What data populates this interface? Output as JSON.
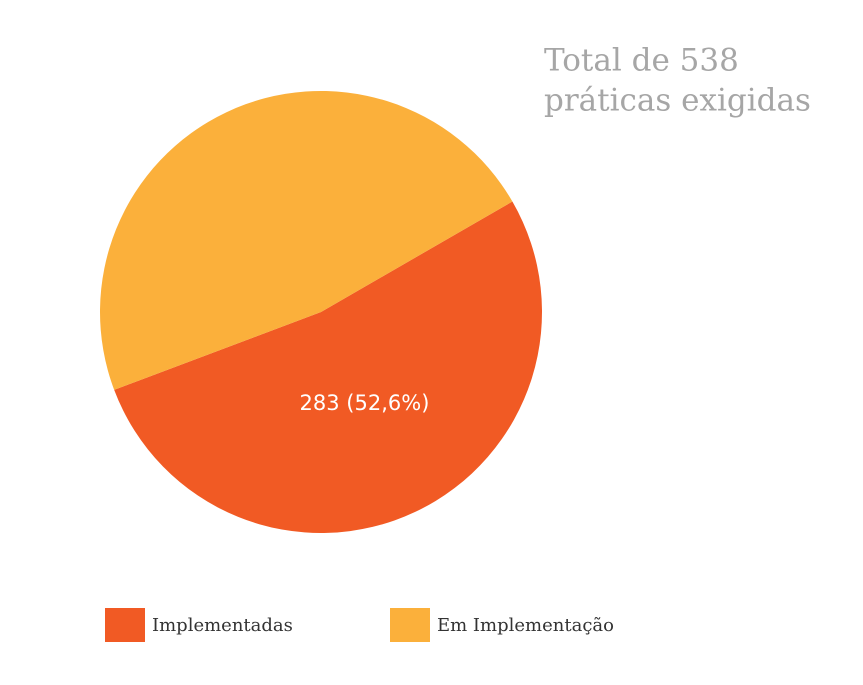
{
  "chart_data": {
    "type": "pie",
    "title": [
      "Total de 538",
      "práticas exigidas"
    ],
    "categories": [
      "Implementadas",
      "Em Implementação"
    ],
    "values": [
      283,
      255
    ],
    "value_labels": [
      "283 (52,6%)",
      null
    ],
    "colors": [
      "#f15a24",
      "#fbb03b"
    ],
    "legend": "bottom"
  }
}
